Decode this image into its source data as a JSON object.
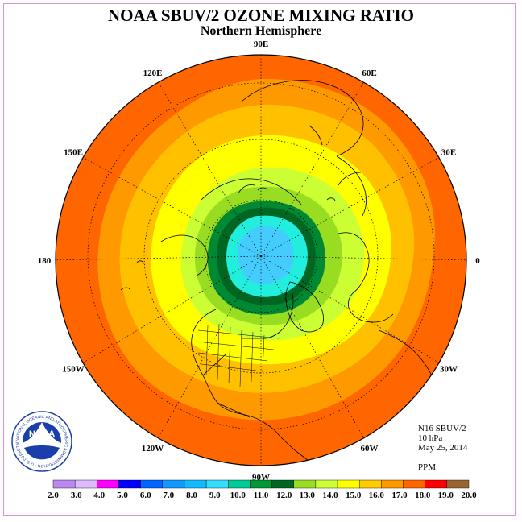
{
  "header": {
    "title": "NOAA SBUV/2 OZONE MIXING RATIO",
    "subtitle": "Northern Hemisphere"
  },
  "info": {
    "satellite": "N16 SBUV/2",
    "level": "10 hPa",
    "date": "May 25, 2014",
    "units": "PPM"
  },
  "map": {
    "projection": "north-polar-stereographic",
    "longitude_labels": [
      "90E",
      "60E",
      "30E",
      "0",
      "30W",
      "60W",
      "90W",
      "120W",
      "150W",
      "180",
      "150E",
      "120E"
    ],
    "field_levels": [
      {
        "level": "18.0",
        "color": "#ff6600"
      },
      {
        "level": "17.0",
        "color": "#ff9900"
      },
      {
        "level": "16.0",
        "color": "#ffc000"
      },
      {
        "level": "15.0",
        "color": "#ffff00"
      },
      {
        "level": "14.0",
        "color": "#ccff33"
      },
      {
        "level": "13.0",
        "color": "#99dd22"
      },
      {
        "level": "12.0",
        "color": "#008833"
      },
      {
        "level": "11.0",
        "color": "#006622"
      },
      {
        "level": "10.0",
        "color": "#22eedd"
      },
      {
        "level": "9.0",
        "color": "#44ccff"
      }
    ]
  },
  "colorbar": {
    "labels": [
      "2.0",
      "3.0",
      "4.0",
      "5.0",
      "6.0",
      "7.0",
      "8.0",
      "9.0",
      "10.0",
      "11.0",
      "12.0",
      "13.0",
      "14.0",
      "15.0",
      "16.0",
      "17.0",
      "18.0",
      "19.0",
      "20.0"
    ],
    "colors": [
      "#bb88ee",
      "#ddbbff",
      "#ff00ff",
      "#0000ff",
      "#0066ff",
      "#1199ff",
      "#11bbff",
      "#33ddff",
      "#00cc99",
      "#009933",
      "#006622",
      "#99dd22",
      "#ccff33",
      "#ffff00",
      "#ffcc00",
      "#ff9900",
      "#ff6600",
      "#ff0000",
      "#996633"
    ]
  },
  "logo": {
    "text": "NOAA",
    "ring_text": "NATIONAL OCEANIC AND ATMOSPHERIC ADMINISTRATION · U.S. DEPARTMENT OF COMMERCE"
  }
}
